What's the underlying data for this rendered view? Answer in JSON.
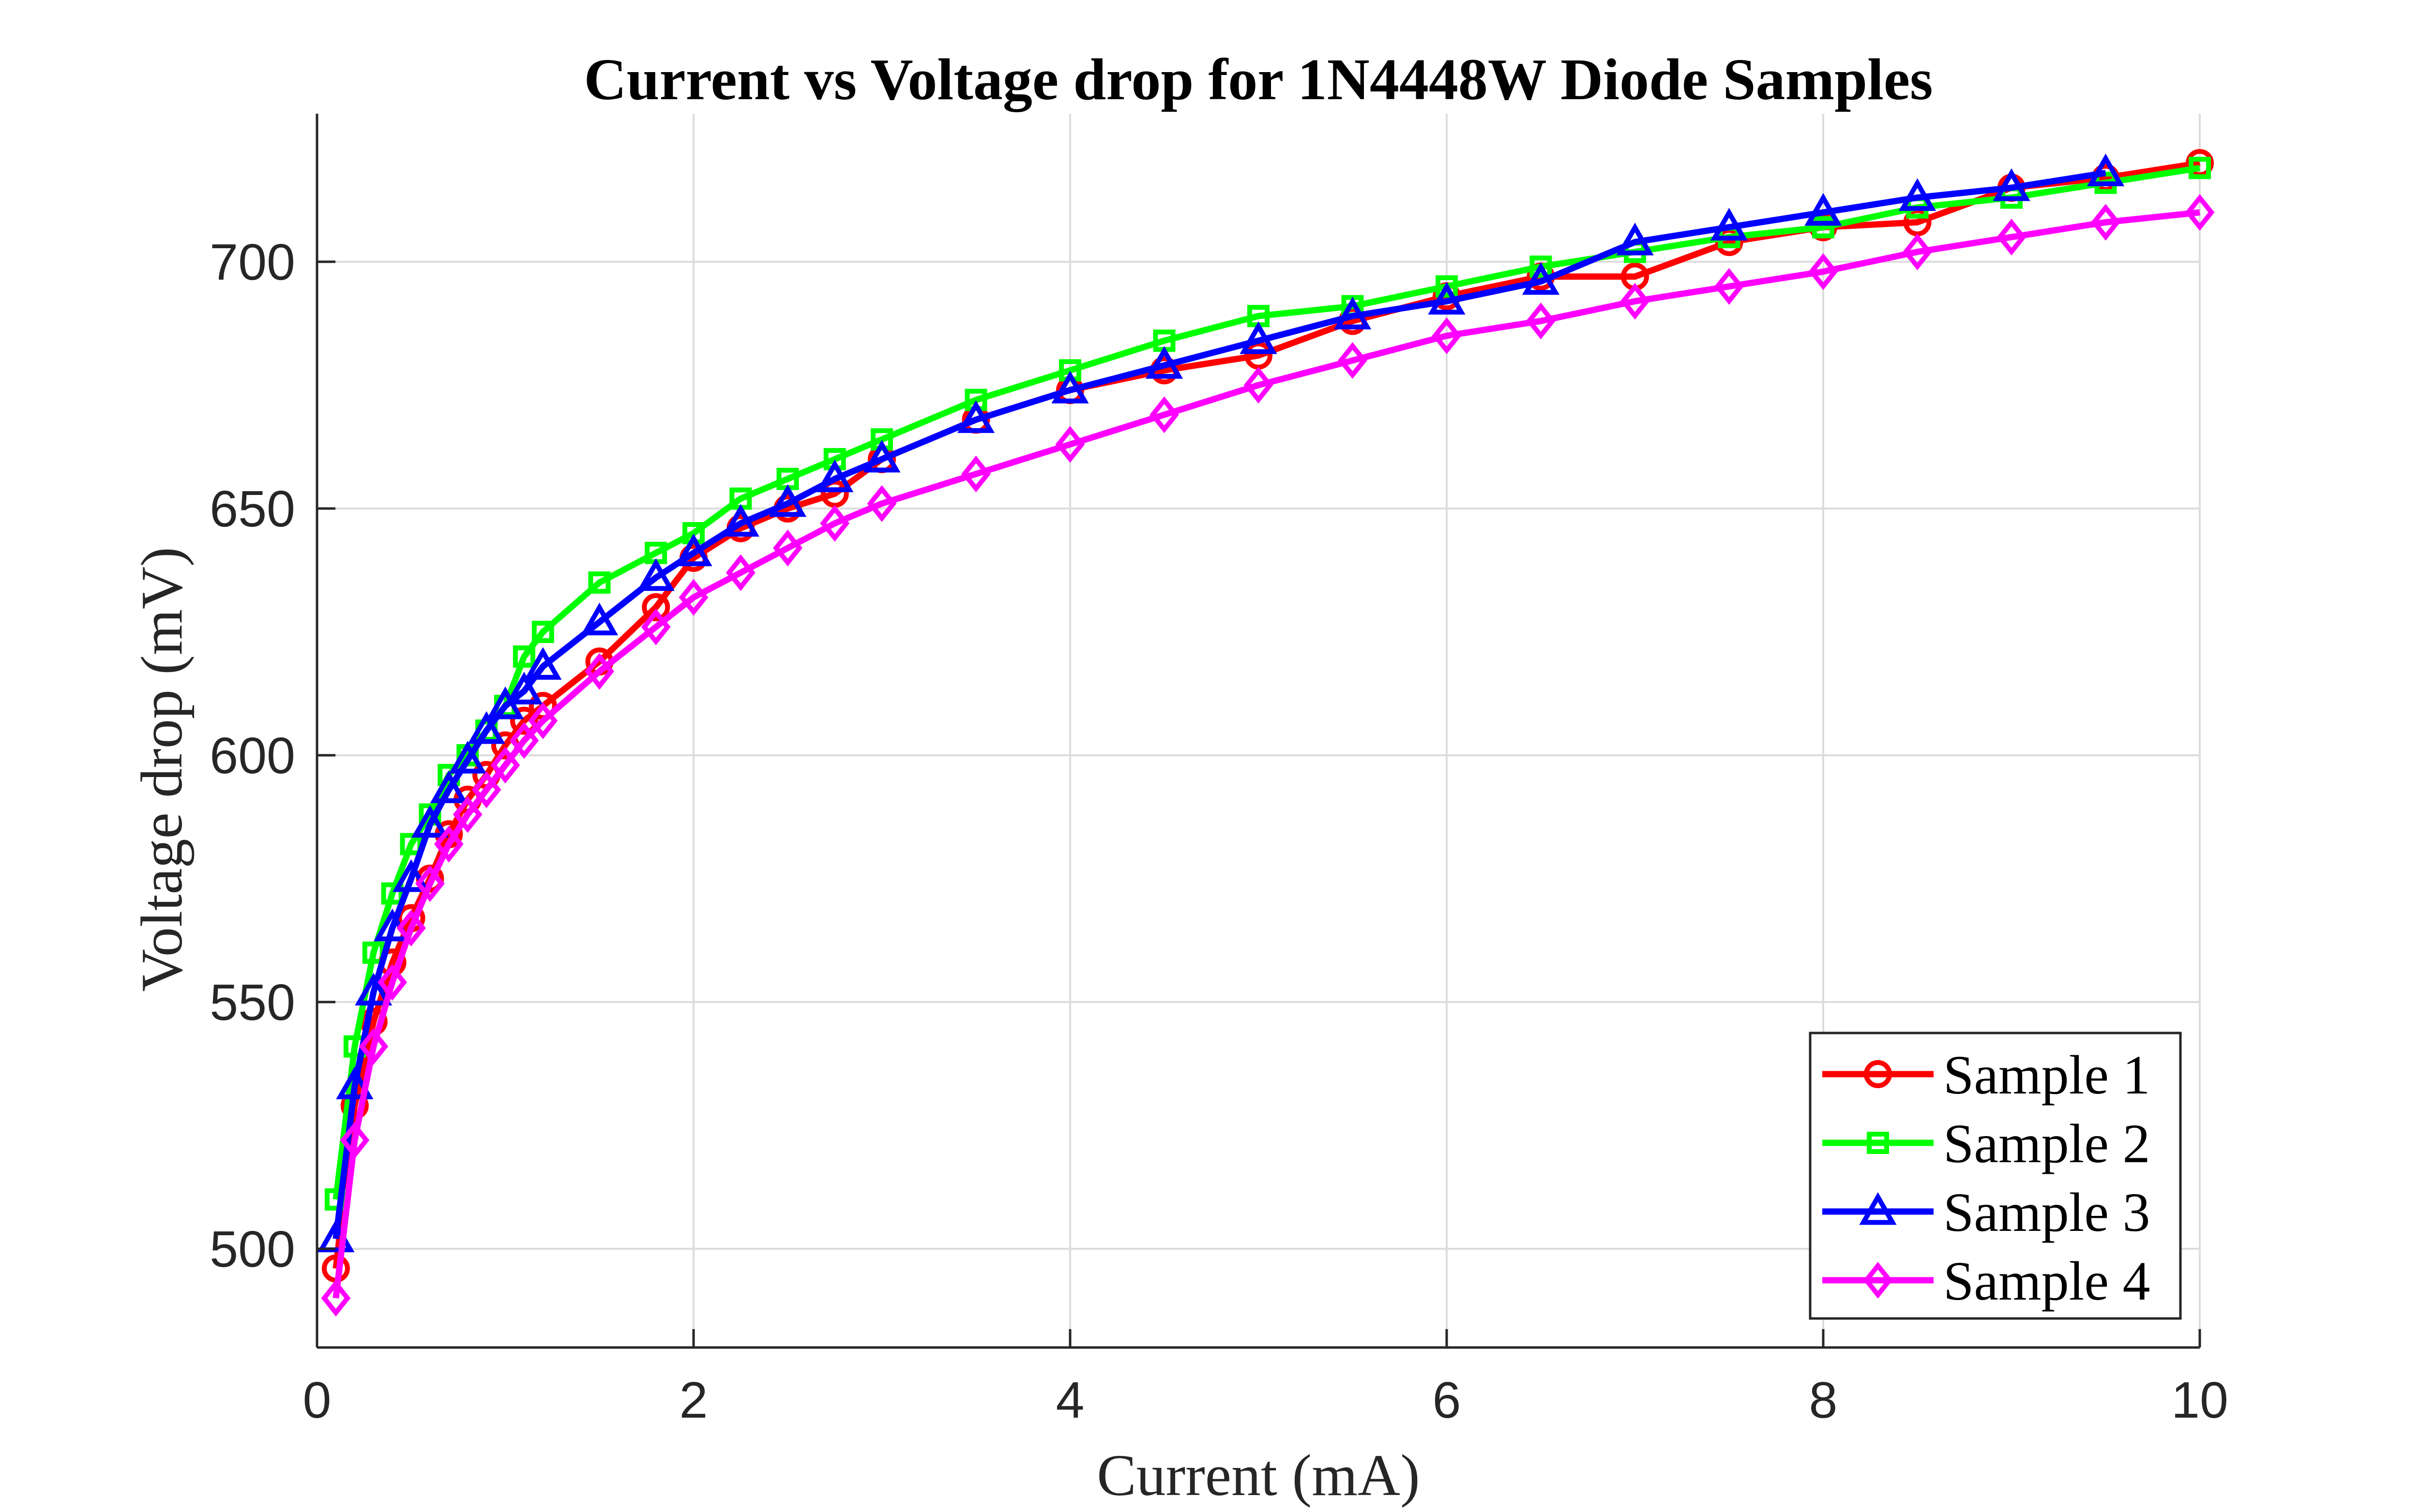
{
  "chart_data": {
    "type": "line",
    "title": "Current vs Voltage drop for 1N4448W Diode Samples",
    "xlabel": "Current (mA)",
    "ylabel": "Voltage drop (mV)",
    "xlim": [
      0,
      10
    ],
    "ylim": [
      480,
      730
    ],
    "xticks": [
      0,
      2,
      4,
      6,
      8,
      10
    ],
    "yticks": [
      500,
      550,
      600,
      650,
      700
    ],
    "grid": true,
    "legend_position": "bottom-right",
    "series": [
      {
        "name": "Sample 1",
        "color": "#ff0000",
        "marker": "circle",
        "x": [
          0.1,
          0.2,
          0.3,
          0.4,
          0.5,
          0.6,
          0.7,
          0.8,
          0.9,
          1.0,
          1.1,
          1.2,
          1.5,
          1.8,
          2.0,
          2.25,
          2.5,
          2.75,
          3.0,
          3.5,
          4.0,
          4.5,
          5.0,
          5.5,
          6.0,
          6.5,
          7.0,
          7.5,
          8.0,
          8.5,
          9.0,
          9.5,
          10.0
        ],
        "y": [
          496,
          529,
          546,
          558,
          567,
          575,
          584,
          591,
          596,
          602,
          607,
          610,
          619,
          630,
          640,
          646,
          650,
          653,
          660,
          668,
          674,
          678,
          681,
          688,
          693,
          697,
          697,
          704,
          707,
          708,
          715,
          717,
          720
        ]
      },
      {
        "name": "Sample 2",
        "color": "#00ff00",
        "marker": "square",
        "x": [
          0.1,
          0.2,
          0.3,
          0.4,
          0.5,
          0.6,
          0.7,
          0.8,
          0.9,
          1.0,
          1.1,
          1.2,
          1.5,
          1.8,
          2.0,
          2.25,
          2.5,
          2.75,
          3.0,
          3.5,
          4.0,
          4.5,
          5.0,
          5.5,
          6.0,
          6.5,
          7.0,
          7.5,
          8.0,
          8.5,
          9.0,
          9.5,
          10.0
        ],
        "y": [
          510,
          541,
          560,
          572,
          582,
          588,
          596,
          600,
          605,
          610,
          620,
          625,
          635,
          641,
          645,
          652,
          656,
          660,
          664,
          672,
          678,
          684,
          689,
          691,
          695,
          699,
          702,
          705,
          707,
          711,
          713,
          716,
          719
        ]
      },
      {
        "name": "Sample 3",
        "color": "#0000ff",
        "marker": "triangle",
        "x": [
          0.1,
          0.2,
          0.3,
          0.4,
          0.5,
          0.6,
          0.7,
          0.8,
          0.9,
          1.0,
          1.1,
          1.2,
          1.5,
          1.8,
          2.0,
          2.25,
          2.5,
          2.75,
          3.0,
          3.5,
          4.0,
          4.5,
          5.0,
          5.5,
          6.0,
          6.5,
          7.0,
          7.5,
          8.0,
          8.5,
          9.0,
          9.5
        ],
        "y": [
          502,
          533,
          552,
          565,
          575,
          586,
          593,
          599,
          605,
          610,
          613,
          618,
          627,
          636,
          641,
          647,
          651,
          656,
          660,
          668,
          674,
          679,
          684,
          689,
          692,
          696,
          704,
          707,
          710,
          713,
          715,
          718
        ]
      },
      {
        "name": "Sample 4",
        "color": "#ff00ff",
        "marker": "diamond",
        "x": [
          0.1,
          0.2,
          0.3,
          0.4,
          0.5,
          0.6,
          0.7,
          0.8,
          0.9,
          1.0,
          1.1,
          1.2,
          1.5,
          1.8,
          2.0,
          2.25,
          2.5,
          2.75,
          3.0,
          3.5,
          4.0,
          4.5,
          5.0,
          5.5,
          6.0,
          6.5,
          7.0,
          7.5,
          8.0,
          8.5,
          9.0,
          9.5,
          10.0
        ],
        "y": [
          490,
          522,
          541,
          554,
          565,
          574,
          582,
          588,
          593,
          598,
          603,
          607,
          617,
          626,
          632,
          637,
          642,
          647,
          651,
          657,
          663,
          669,
          675,
          680,
          685,
          688,
          692,
          695,
          698,
          702,
          705,
          708,
          710
        ]
      }
    ]
  }
}
